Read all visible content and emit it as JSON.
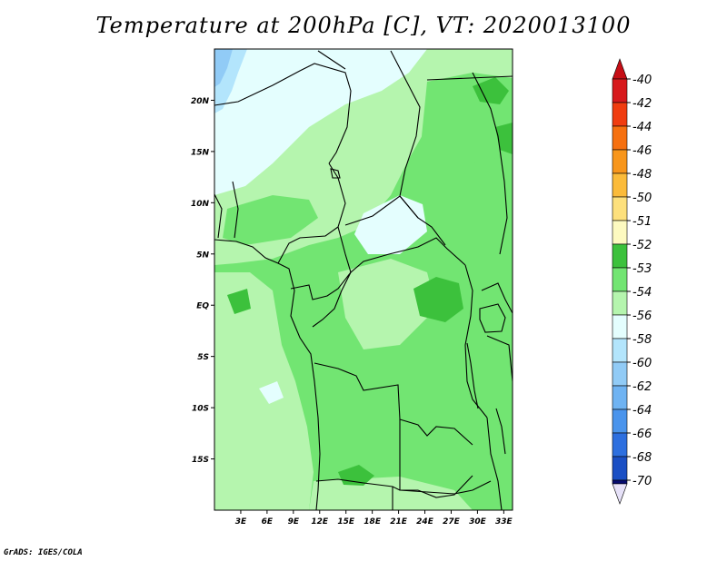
{
  "title": "Temperature at 200hPa [C], VT: 2020013100",
  "credit": "GrADS: IGES/COLA",
  "map": {
    "lon_range": [
      0,
      34
    ],
    "lat_range": [
      -20,
      25
    ],
    "lat_ticks": [
      {
        "value": 20,
        "label": "20N"
      },
      {
        "value": 15,
        "label": "15N"
      },
      {
        "value": 10,
        "label": "10N"
      },
      {
        "value": 5,
        "label": "5N"
      },
      {
        "value": 0,
        "label": "EQ"
      },
      {
        "value": -5,
        "label": "5S"
      },
      {
        "value": -10,
        "label": "10S"
      },
      {
        "value": -15,
        "label": "15S"
      }
    ],
    "lon_ticks": [
      {
        "value": 3,
        "label": "3E"
      },
      {
        "value": 6,
        "label": "6E"
      },
      {
        "value": 9,
        "label": "9E"
      },
      {
        "value": 12,
        "label": "12E"
      },
      {
        "value": 15,
        "label": "15E"
      },
      {
        "value": 18,
        "label": "18E"
      },
      {
        "value": 21,
        "label": "21E"
      },
      {
        "value": 24,
        "label": "24E"
      },
      {
        "value": 27,
        "label": "27E"
      },
      {
        "value": 30,
        "label": "30E"
      },
      {
        "value": 33,
        "label": "33E"
      }
    ]
  },
  "legend": {
    "levels": [
      {
        "label": "-40",
        "color": "#d7191c"
      },
      {
        "label": "-42",
        "color": "#f03c0f"
      },
      {
        "label": "-44",
        "color": "#f6700f"
      },
      {
        "label": "-46",
        "color": "#f8961b"
      },
      {
        "label": "-48",
        "color": "#fbbb3a"
      },
      {
        "label": "-50",
        "color": "#fde07c"
      },
      {
        "label": "-51",
        "color": "#fdfac0"
      },
      {
        "label": "-52",
        "color": "#3cc13c"
      },
      {
        "label": "-53",
        "color": "#72e572"
      },
      {
        "label": "-54",
        "color": "#b5f5ae"
      },
      {
        "label": "-56",
        "color": "#e4fefe"
      },
      {
        "label": "-58",
        "color": "#b3e5fc"
      },
      {
        "label": "-60",
        "color": "#91cbf6"
      },
      {
        "label": "-62",
        "color": "#6fb3f2"
      },
      {
        "label": "-64",
        "color": "#4a94ec"
      },
      {
        "label": "-66",
        "color": "#2d6fdf"
      },
      {
        "label": "-68",
        "color": "#1a4fc4"
      },
      {
        "label": "-70",
        "color": "#0e2d94"
      }
    ],
    "bottom_arrow_color": "#e6e1f8",
    "top_arrow_color": "#c60e16",
    "bottom_band_color": "#050a6e"
  },
  "colors": {
    "c52": "#3cc13c",
    "c53": "#72e572",
    "c54": "#b5f5ae",
    "c56": "#e4fefe",
    "c58": "#b3e5fc",
    "c60": "#91cbf6"
  }
}
